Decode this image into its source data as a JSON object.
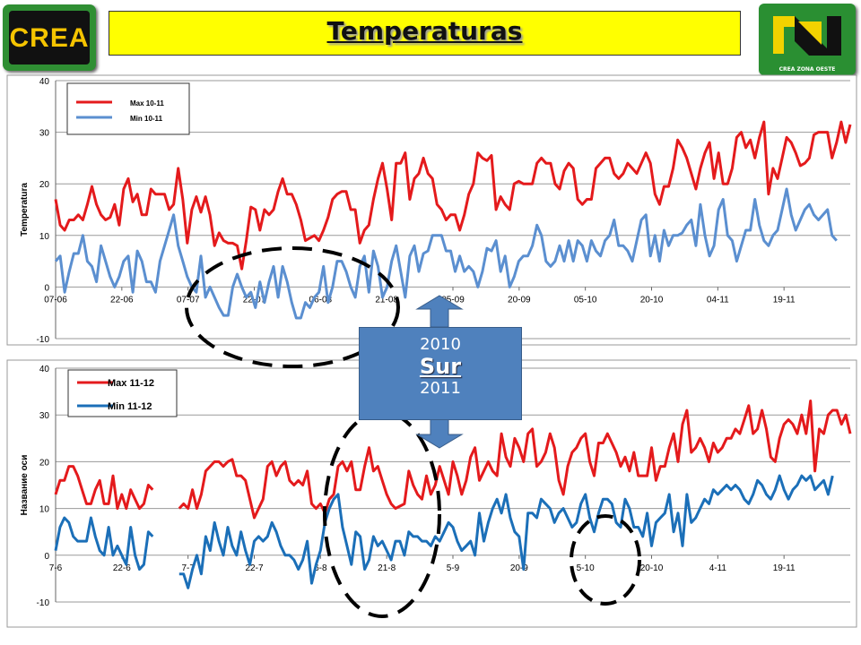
{
  "header": {
    "title": "Temperaturas",
    "logo_left": "CREA",
    "logo_right": "CREA ZONA OESTE"
  },
  "callout": {
    "line1": "2010",
    "line2": "Sur",
    "line3": "2011"
  },
  "colors": {
    "max": "#e41a1c",
    "min_top": "#5b8fd0",
    "min_bottom": "#1b6fb8"
  },
  "chart_data": [
    {
      "type": "line",
      "title": "",
      "xlabel": "",
      "ylabel": "Temperatura",
      "ylim": [
        -10,
        40
      ],
      "yticks": [
        -10,
        0,
        10,
        20,
        30,
        40
      ],
      "xticks": [
        "07-06",
        "22-06",
        "07-07",
        "22-07",
        "06-08",
        "21-08",
        "05-09",
        "20-09",
        "05-10",
        "20-10",
        "04-11",
        "19-11"
      ],
      "legend_position": "top-left",
      "series": [
        {
          "name": "Max 10-11",
          "color": "#e41a1c",
          "values": [
            17,
            12,
            11,
            13,
            13,
            14,
            13,
            16,
            19.5,
            16,
            14,
            13,
            13.5,
            16,
            12,
            19,
            21,
            16.5,
            18,
            14,
            14,
            19,
            18,
            18,
            18,
            15,
            16,
            23,
            17,
            8.5,
            15,
            17.5,
            14.5,
            17.5,
            14,
            8,
            10.5,
            9,
            8.5,
            8.5,
            8,
            3.5,
            9,
            15.5,
            15,
            11,
            15,
            14,
            15,
            18.5,
            21,
            18,
            18,
            16,
            13,
            9,
            9.5,
            10,
            9,
            11,
            13.5,
            17,
            18,
            18.5,
            18.5,
            15,
            15,
            8.5,
            11,
            12,
            17,
            21,
            24,
            19,
            13,
            24,
            24,
            26,
            17,
            21,
            22,
            25,
            22,
            21,
            16,
            15,
            13,
            14,
            14,
            11,
            14,
            18,
            20,
            26,
            25,
            24.5,
            25.5,
            15,
            17.5,
            16,
            15,
            20,
            20.5,
            20,
            20,
            20,
            24,
            25,
            24,
            24,
            20,
            19,
            22.5,
            24,
            23,
            17,
            16,
            17,
            17,
            23,
            24,
            25,
            25,
            22,
            21,
            22,
            24,
            23,
            22,
            24,
            26,
            24,
            18,
            16,
            19.5,
            19.5,
            23,
            28.5,
            27,
            25,
            22,
            19,
            23,
            26,
            28,
            21,
            26,
            20,
            20,
            23,
            29,
            30,
            27,
            28.5,
            25,
            29,
            32,
            18,
            23,
            21,
            25,
            29,
            28,
            26,
            23.5,
            24,
            25,
            29.5,
            30,
            30,
            30,
            25,
            28,
            32,
            28,
            31.5
          ]
        },
        {
          "name": "Min 10-11",
          "color": "#5b8fd0",
          "values": [
            5,
            6,
            -1,
            3,
            6.5,
            6.5,
            10,
            5,
            4,
            1,
            8,
            5,
            2,
            0,
            2,
            5,
            6,
            -1,
            7,
            5,
            1,
            1,
            -1,
            5,
            8,
            11,
            14,
            8,
            5,
            2,
            0,
            -1,
            6,
            -2,
            0,
            -2,
            -4,
            -5.5,
            -5.5,
            0,
            2.5,
            0,
            -2,
            -1,
            -4,
            1,
            -3,
            1,
            4,
            -2,
            4,
            1,
            -3,
            -6,
            -6,
            -3,
            -4,
            -2,
            -1,
            4,
            -3,
            0,
            5,
            5,
            3,
            0,
            -2,
            4,
            6,
            -1,
            7,
            4,
            -2,
            0,
            5,
            8,
            3,
            -2,
            6,
            8,
            3,
            6.5,
            7,
            10,
            10,
            10,
            7,
            7,
            3,
            6,
            3,
            4,
            3,
            0,
            3,
            7.5,
            7,
            9,
            3,
            6,
            0,
            2,
            5,
            6,
            6,
            8,
            12,
            10,
            5,
            4,
            5,
            8,
            5,
            9,
            5,
            9,
            8,
            5,
            9,
            7,
            6,
            9,
            10,
            13,
            8,
            8,
            7,
            5,
            9,
            13,
            14,
            6,
            10,
            5,
            11,
            8,
            10,
            10,
            10.5,
            12,
            13,
            8,
            16,
            10,
            6,
            8,
            15,
            17,
            10,
            9,
            5,
            8,
            11,
            11,
            17,
            12,
            9,
            8,
            10,
            11,
            15,
            19,
            14,
            11,
            13,
            15,
            16,
            14,
            13,
            14,
            15,
            10,
            9
          ]
        }
      ]
    },
    {
      "type": "line",
      "title": "",
      "xlabel": "",
      "ylabel": "Название оси",
      "ylim": [
        -10,
        40
      ],
      "yticks": [
        -10,
        0,
        10,
        20,
        30,
        40
      ],
      "xticks": [
        "7-6",
        "22-6",
        "7-7",
        "22-7",
        "6-8",
        "21-8",
        "5-9",
        "20-9",
        "5-10",
        "20-10",
        "4-11",
        "19-11"
      ],
      "legend_position": "top-left",
      "series": [
        {
          "name": "Max 11-12",
          "color": "#e41a1c",
          "values": [
            13,
            16,
            16,
            19,
            19,
            17,
            14,
            11,
            11,
            14,
            16,
            11,
            11,
            17,
            10,
            13,
            10,
            14,
            12,
            10,
            11,
            15,
            14,
            null,
            null,
            null,
            null,
            null,
            10,
            11,
            10,
            14,
            10,
            13,
            18,
            19,
            20,
            20,
            19,
            20,
            20.5,
            17,
            17,
            16,
            12,
            8,
            10,
            12,
            19,
            20,
            17,
            19,
            20,
            16,
            15,
            16,
            15,
            18,
            11,
            10,
            11,
            9,
            12,
            13,
            19,
            20,
            18,
            20,
            14,
            14,
            19,
            23,
            18,
            19,
            16,
            13,
            11,
            10,
            10.5,
            11,
            18,
            15,
            13,
            12,
            17,
            13,
            15,
            19,
            16,
            13,
            20,
            17,
            13,
            16,
            21,
            23,
            16,
            18,
            20,
            18,
            17,
            26,
            21,
            19,
            25,
            23,
            20,
            26,
            27,
            19,
            20,
            22,
            26,
            23,
            16,
            13,
            19,
            22,
            23,
            25,
            26,
            20,
            17,
            24,
            24,
            26,
            24,
            22,
            19,
            21,
            18,
            22,
            17,
            17,
            17,
            23,
            16,
            19,
            19,
            23,
            26,
            20,
            28,
            31,
            22,
            23,
            25,
            23,
            20,
            24,
            22,
            23,
            25,
            25,
            27,
            26,
            29,
            32,
            26,
            27,
            31,
            27,
            21,
            20,
            25,
            28,
            29,
            28,
            26,
            30,
            26,
            33,
            18,
            27,
            26,
            30,
            31,
            31,
            28,
            30,
            26
          ],
          "gap_note": ""
        },
        {
          "name": "Min 11-12",
          "color": "#1b6fb8",
          "values": [
            1,
            6,
            8,
            7,
            4,
            3,
            3,
            3,
            8,
            4,
            1,
            0,
            6,
            0,
            2,
            0,
            -2,
            6,
            0,
            -3,
            -2,
            5,
            4,
            null,
            null,
            null,
            null,
            null,
            -4,
            -4,
            -7,
            -3,
            0,
            -4,
            4,
            1,
            7,
            3,
            0,
            6,
            2,
            0,
            5,
            1,
            -2,
            3,
            4,
            3,
            4,
            7,
            5,
            2,
            0,
            0,
            -1,
            -3,
            -1,
            3,
            -6,
            -2,
            1,
            7,
            10,
            12,
            13,
            6,
            2,
            -2,
            5,
            4,
            -3,
            -1,
            4,
            2,
            3,
            1,
            -1,
            3,
            3,
            0,
            5,
            4,
            4,
            3,
            3,
            2,
            4,
            3,
            5,
            7,
            6,
            3,
            1,
            2,
            3,
            0,
            9,
            3,
            7,
            10,
            12,
            9,
            13,
            8,
            5,
            4,
            -3,
            9,
            9,
            8,
            12,
            11,
            10,
            7,
            9,
            10,
            8,
            6,
            7,
            11,
            13,
            8,
            5,
            9,
            12,
            12,
            11,
            7,
            6,
            12,
            10,
            6,
            6,
            4,
            9,
            2,
            7,
            8,
            9,
            13,
            5,
            9,
            2,
            13,
            7,
            8,
            10,
            12,
            11,
            14,
            13,
            14,
            15,
            14,
            15,
            14,
            12,
            11,
            13,
            16,
            15,
            13,
            12,
            14,
            17,
            14,
            12,
            14,
            15,
            17,
            16,
            17,
            14,
            15,
            16,
            13,
            17
          ],
          "gap_note": ""
        }
      ]
    }
  ]
}
